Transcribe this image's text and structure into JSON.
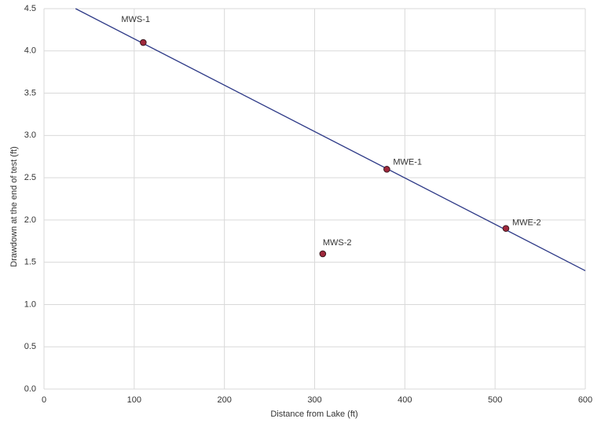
{
  "chart_data": {
    "type": "scatter",
    "xlabel": "Distance from Lake (ft)",
    "ylabel": "Drawdown at the end of test (ft)",
    "x": [
      110,
      309,
      380,
      512
    ],
    "values": [
      4.1,
      1.6,
      2.6,
      1.9
    ],
    "labels": [
      "MWS-1",
      "MWS-2",
      "MWE-1",
      "MWE-2"
    ],
    "color": "#a0283c",
    "trendline": {
      "x": [
        35,
        600
      ],
      "values": [
        4.5,
        1.4
      ],
      "color": "#2e3a87"
    },
    "xlim": [
      0,
      600
    ],
    "xticks": [
      0,
      100,
      200,
      300,
      400,
      500,
      600
    ],
    "ylim": [
      0,
      4.5
    ],
    "yticks": [
      {
        "value": 0,
        "label": "0.0"
      },
      0.5,
      {
        "value": 1,
        "label": "1.0"
      },
      1.5,
      {
        "value": 2,
        "label": "2.0"
      },
      2.5,
      {
        "value": 3,
        "label": "3.0"
      },
      3.5,
      {
        "value": 4,
        "label": "4.0"
      },
      4.5
    ],
    "grid": true
  }
}
